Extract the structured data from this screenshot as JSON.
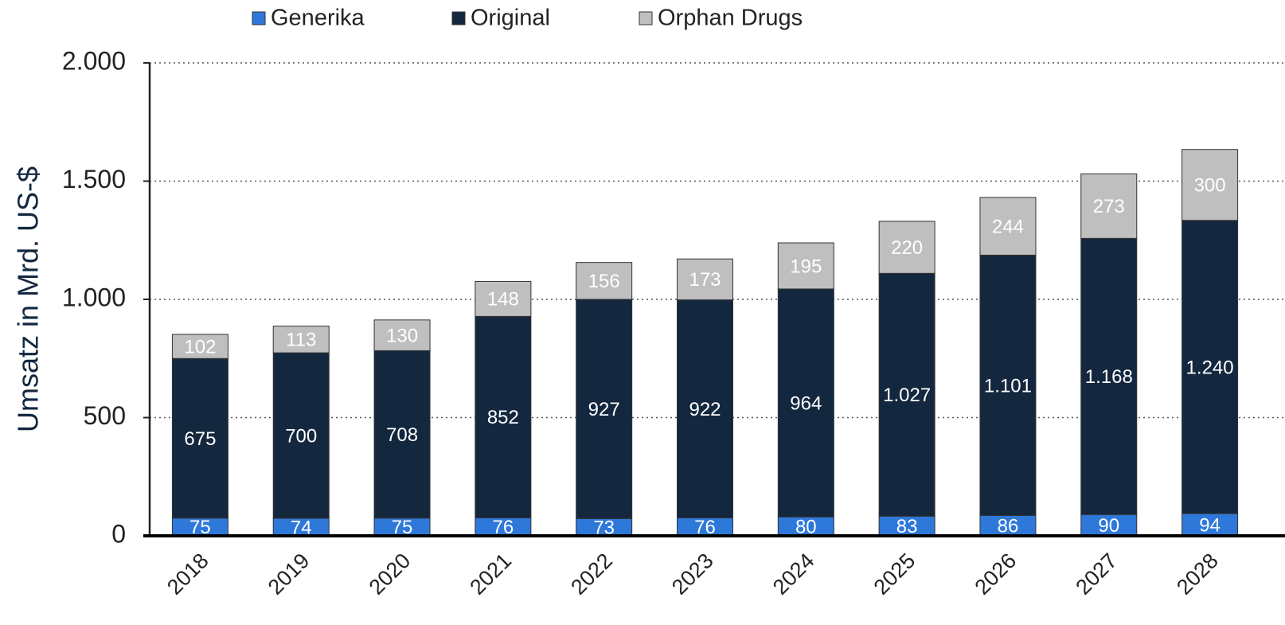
{
  "chart_data": {
    "type": "stacked_bar",
    "y_label": "Umsatz in Mrd. US-$",
    "categories": [
      "2018",
      "2019",
      "2020",
      "2021",
      "2022",
      "2023",
      "2024",
      "2025",
      "2026",
      "2027",
      "2028"
    ],
    "series": [
      {
        "name": "Generika",
        "color": "#2e78d9",
        "values": [
          75,
          74,
          75,
          76,
          73,
          76,
          80,
          83,
          86,
          90,
          94
        ]
      },
      {
        "name": "Original",
        "color": "#13273f",
        "values": [
          675,
          700,
          708,
          852,
          927,
          922,
          964,
          1027,
          1101,
          1168,
          1240
        ],
        "value_labels": [
          "675",
          "700",
          "708",
          "852",
          "927",
          "922",
          "964",
          "1.027",
          "1.101",
          "1.168",
          "1.240"
        ]
      },
      {
        "name": "Orphan Drugs",
        "color": "#bfbfbf",
        "values": [
          102,
          113,
          130,
          148,
          156,
          173,
          195,
          220,
          244,
          273,
          300
        ]
      }
    ],
    "ylim": [
      0,
      2000
    ],
    "yticks": [
      0,
      {
        "value": 500,
        "label": "500"
      },
      {
        "value": 1000,
        "label": "1.000"
      },
      {
        "value": 1500,
        "label": "1.500"
      },
      {
        "value": 2000,
        "label": "2.000"
      }
    ],
    "grid": true,
    "legend": "top"
  }
}
